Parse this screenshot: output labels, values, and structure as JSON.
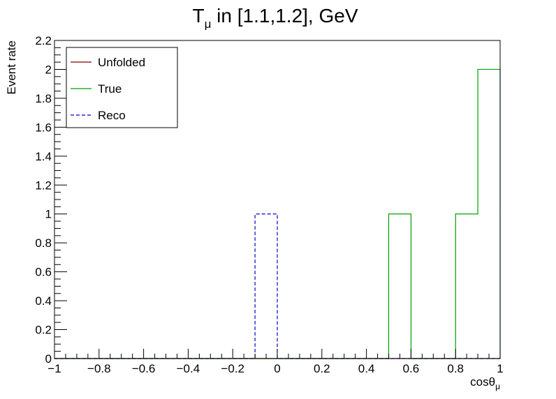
{
  "chart_data": {
    "type": "histogram",
    "title": {
      "main": "T",
      "sub": "μ",
      "rest": " in [1.1,1.2], GeV"
    },
    "xlabel": {
      "main": "cosθ",
      "sub": "μ"
    },
    "ylabel": "Event rate",
    "xlim": [
      -1,
      1
    ],
    "ylim": [
      0,
      2.2
    ],
    "bin_edges": [
      -1.0,
      -0.9,
      -0.8,
      -0.7,
      -0.6,
      -0.5,
      -0.4,
      -0.3,
      -0.2,
      -0.1,
      0.0,
      0.1,
      0.2,
      0.3,
      0.4,
      0.5,
      0.6,
      0.7,
      0.8,
      0.9,
      1.0
    ],
    "x_ticks": [
      -1,
      -0.8,
      -0.6,
      -0.4,
      -0.2,
      0,
      0.2,
      0.4,
      0.6,
      0.8,
      1
    ],
    "x_tick_labels": [
      "−1",
      "−0.8",
      "−0.6",
      "−0.4",
      "−0.2",
      "0",
      "0.2",
      "0.4",
      "0.6",
      "0.8",
      "1"
    ],
    "y_ticks": [
      0,
      0.2,
      0.4,
      0.6,
      0.8,
      1,
      1.2,
      1.4,
      1.6,
      1.8,
      2,
      2.2
    ],
    "y_tick_labels": [
      "0",
      "0.2",
      "0.4",
      "0.6",
      "0.8",
      "1",
      "1.2",
      "1.4",
      "1.6",
      "1.8",
      "2",
      "2.2"
    ],
    "series": [
      {
        "name": "Unfolded",
        "color": "#800000",
        "dash": false,
        "values": [
          0,
          0,
          0,
          0,
          0,
          0,
          0,
          0,
          0,
          0,
          0,
          0,
          0,
          0,
          0,
          0,
          0,
          0,
          0,
          0
        ]
      },
      {
        "name": "True",
        "color": "#00a000",
        "dash": false,
        "values": [
          0,
          0,
          0,
          0,
          0,
          0,
          0,
          0,
          0,
          0,
          0,
          0,
          0,
          0,
          0,
          1,
          0,
          0,
          1,
          2
        ]
      },
      {
        "name": "Reco",
        "color": "#0000cc",
        "dash": true,
        "values": [
          0,
          0,
          0,
          0,
          0,
          0,
          0,
          0,
          0,
          1,
          0,
          0,
          0,
          0,
          0,
          0,
          0,
          0,
          0,
          0
        ]
      }
    ],
    "grid": false,
    "legend_position": "top-left"
  }
}
